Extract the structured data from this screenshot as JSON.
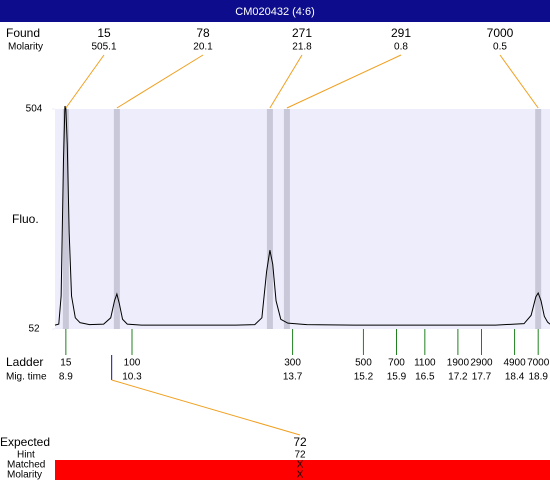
{
  "chart_data": {
    "type": "line",
    "title": "CM020432 (4:6)",
    "y_label": "Fluo.",
    "ylim": [
      52,
      504
    ],
    "yticks": [
      52,
      504
    ],
    "xlim": [
      8.67,
      19.15
    ],
    "color": "#000000",
    "x": [
      8.67,
      8.75,
      8.8,
      8.85,
      8.88,
      8.9,
      8.93,
      8.97,
      9.02,
      9.1,
      9.2,
      9.4,
      9.7,
      9.85,
      9.93,
      9.98,
      10.03,
      10.1,
      10.2,
      10.5,
      11.5,
      12.5,
      12.9,
      13.05,
      13.15,
      13.22,
      13.28,
      13.35,
      13.45,
      13.6,
      14,
      15,
      16,
      17,
      18,
      18.6,
      18.75,
      18.85,
      18.9,
      18.96,
      19.03,
      19.1,
      19.15
    ],
    "values": [
      60,
      62,
      120,
      400,
      510,
      505,
      430,
      250,
      120,
      75,
      65,
      61,
      62,
      75,
      110,
      124,
      105,
      72,
      62,
      60,
      60,
      60,
      61,
      75,
      170,
      214,
      185,
      110,
      72,
      64,
      61,
      60,
      60,
      60,
      60,
      63,
      80,
      118,
      126,
      110,
      78,
      66,
      62
    ],
    "found": {
      "label": "Found",
      "molarity_label": "Molarity",
      "sizes": [
        15,
        78,
        271,
        291,
        7000
      ],
      "molarity": [
        505.1,
        20.1,
        21.8,
        0.8,
        0.5
      ],
      "mig_times": [
        8.9,
        9.98,
        13.22,
        13.58,
        18.9
      ],
      "line_color": "#f0a020",
      "band_color": "#c8c8d8"
    },
    "ladder": {
      "label": "Ladder",
      "time_label": "Mig. time",
      "sizes": [
        15,
        100,
        300,
        500,
        700,
        1100,
        1900,
        2900,
        4900,
        7000
      ],
      "mig_times": [
        8.9,
        10.3,
        13.7,
        15.2,
        15.9,
        16.5,
        17.2,
        17.7,
        18.4,
        18.9
      ],
      "color": "#208020"
    },
    "expected": {
      "label": "Expected",
      "value": 72,
      "hint_label": "Hint",
      "hint": 72,
      "matched_label": "Matched",
      "matched": "X",
      "molarity_label": "Molarity",
      "molarity": "X",
      "mig_time": 9.87,
      "marker_color": "#1010a0",
      "bar_color": "#ff0000"
    }
  }
}
